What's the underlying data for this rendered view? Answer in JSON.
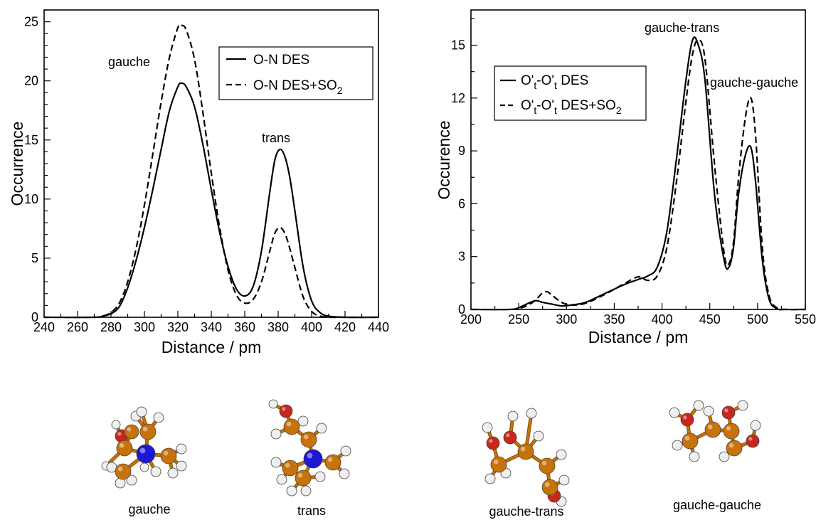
{
  "chart_data": [
    {
      "type": "line",
      "xlabel": "Distance / pm",
      "ylabel": "Occurrence",
      "xlim": [
        240,
        440
      ],
      "ylim": [
        0,
        26
      ],
      "xticks": [
        "240",
        "260",
        "280",
        "300",
        "320",
        "340",
        "360",
        "380",
        "400",
        "420",
        "440"
      ],
      "yticks": [
        "0",
        "5",
        "10",
        "15",
        "20",
        "25"
      ],
      "grid": false,
      "legend_position": "top-right",
      "annotations": [
        {
          "text": "gauche",
          "x": 309,
          "y": 21
        },
        {
          "text": "trans",
          "x": 381,
          "y": 14.9
        }
      ],
      "series": [
        {
          "name": "O-N DES",
          "style": "solid",
          "x": [
            240,
            270,
            275,
            280,
            285,
            290,
            295,
            300,
            305,
            310,
            315,
            320,
            322,
            325,
            330,
            335,
            340,
            345,
            350,
            355,
            360,
            365,
            370,
            375,
            378,
            381,
            384,
            387,
            390,
            395,
            400,
            405,
            410,
            420,
            440
          ],
          "y": [
            0,
            0,
            0.1,
            0.3,
            0.9,
            2.5,
            4.8,
            7.6,
            10.8,
            14.2,
            17.5,
            19.5,
            19.8,
            19.5,
            17.8,
            14.6,
            10.8,
            7.2,
            4.3,
            2.4,
            1.8,
            2.6,
            5.6,
            10.6,
            13.3,
            14.2,
            13.6,
            11.8,
            9.0,
            4.2,
            1.4,
            0.4,
            0.1,
            0,
            0
          ]
        },
        {
          "name": "O-N DES+SO2",
          "style": "dashed",
          "x": [
            240,
            270,
            275,
            280,
            285,
            290,
            295,
            300,
            305,
            310,
            315,
            320,
            322,
            325,
            330,
            335,
            340,
            345,
            350,
            355,
            360,
            365,
            370,
            375,
            378,
            381,
            384,
            387,
            390,
            395,
            400,
            405,
            410,
            420,
            440
          ],
          "y": [
            0,
            0,
            0.1,
            0.4,
            1.2,
            3.0,
            5.8,
            9.5,
            13.8,
            18.2,
            22.0,
            24.5,
            24.7,
            24.3,
            21.8,
            17.3,
            12.2,
            7.6,
            4.0,
            1.9,
            1.2,
            1.5,
            3.0,
            5.6,
            7.1,
            7.6,
            7.1,
            5.8,
            4.2,
            1.7,
            0.5,
            0.1,
            0,
            0,
            0
          ]
        }
      ]
    },
    {
      "type": "line",
      "xlabel": "Distance / pm",
      "ylabel": "Occurence",
      "xlim": [
        200,
        550
      ],
      "ylim": [
        0,
        17
      ],
      "xticks": [
        "200",
        "250",
        "300",
        "350",
        "400",
        "450",
        "500",
        "550"
      ],
      "yticks": [
        "0",
        "3",
        "6",
        "9",
        "12",
        "15"
      ],
      "grid": false,
      "legend_position": "top-left",
      "annotations": [
        {
          "text": "gauche-trans",
          "x": 437,
          "y": 16.1
        },
        {
          "text": "gauche-gauche",
          "x": 500,
          "y": 12.9
        }
      ],
      "series": [
        {
          "name": "O'ₜ-O'ₜ DES",
          "style": "solid",
          "x": [
            200,
            240,
            250,
            260,
            268,
            275,
            285,
            295,
            305,
            320,
            340,
            360,
            375,
            385,
            395,
            405,
            415,
            425,
            432,
            438,
            445,
            455,
            465,
            470,
            475,
            480,
            487,
            493,
            498,
            505,
            512,
            520,
            530,
            550
          ],
          "y": [
            0,
            0,
            0.1,
            0.35,
            0.5,
            0.4,
            0.3,
            0.2,
            0.25,
            0.4,
            0.9,
            1.4,
            1.7,
            1.9,
            2.4,
            4.4,
            8.5,
            13.0,
            15.3,
            15.0,
            13.0,
            6.5,
            2.8,
            2.4,
            3.6,
            6.5,
            8.7,
            9.2,
            7.2,
            2.8,
            0.6,
            0.05,
            0,
            0
          ]
        },
        {
          "name": "O'ₜ-O'ₜ DES+SO2",
          "style": "dashed",
          "x": [
            200,
            240,
            250,
            260,
            268,
            275,
            280,
            285,
            295,
            305,
            320,
            340,
            360,
            375,
            385,
            395,
            405,
            415,
            425,
            432,
            438,
            445,
            455,
            465,
            470,
            475,
            480,
            487,
            493,
            498,
            505,
            512,
            520,
            530,
            550
          ],
          "y": [
            0,
            0,
            0.05,
            0.25,
            0.55,
            0.95,
            1.0,
            0.8,
            0.4,
            0.25,
            0.35,
            0.85,
            1.45,
            1.85,
            1.65,
            1.9,
            3.5,
            7.2,
            11.8,
            14.5,
            15.3,
            14.2,
            8.2,
            3.2,
            2.6,
            3.9,
            7.4,
            10.8,
            12.0,
            9.8,
            3.5,
            0.8,
            0.1,
            0,
            0
          ]
        }
      ]
    }
  ],
  "molecules": [
    {
      "label": "gauche"
    },
    {
      "label": "trans"
    },
    {
      "label": "gauche-trans"
    },
    {
      "label": "gauche-gauche"
    }
  ],
  "colors": {
    "carbon": "#c8720a",
    "nitrogen": "#1d17d6",
    "oxygen": "#c9261e",
    "hydrogen": "#eeeeee",
    "axis": "#000000"
  }
}
